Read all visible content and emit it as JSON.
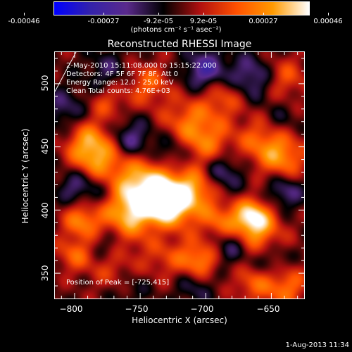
{
  "colorbar": {
    "tick_labels": [
      "-0.00046",
      "-0.00027",
      "-9.2e-05",
      "9.2e-05",
      "0.00027",
      "0.00046"
    ],
    "unit_label": "(photons cm⁻² s⁻¹ asec⁻²)",
    "colors": [
      "#0000ff",
      "#3322aa",
      "#5a2a8c",
      "#000000",
      "#b01010",
      "#ff5000",
      "#ff9a00",
      "#ffffff"
    ]
  },
  "chart_data": {
    "type": "heatmap",
    "title": "Reconstructed RHESSI Image",
    "xlabel": "Heliocentric X (arcsec)",
    "ylabel": "Heliocentric Y (arcsec)",
    "xlim": [
      -815,
      -625
    ],
    "ylim": [
      330,
      525
    ],
    "xticks": [
      -800,
      -750,
      -700,
      -650
    ],
    "yticks": [
      350,
      400,
      450,
      500
    ],
    "xtick_labels": [
      "−800",
      "−750",
      "−700",
      "−650"
    ],
    "ytick_labels": [
      "350",
      "400",
      "450",
      "500"
    ],
    "colorbar_range": [
      -0.00046,
      0.00046
    ],
    "peak": [
      -725,
      415
    ],
    "annotations": [
      "2-May-2010 15:11:08.000 to 15:15:22.000",
      "Detectors: 4F 5F 6F 7F 8F, Att 0",
      "Energy Range: 12.0 - 25.0 keV",
      "Clean    Total counts: 4.76E+03"
    ],
    "peak_label": "Position of Peak = [-725,415]",
    "blobs": [
      {
        "x": -728,
        "y": 405,
        "v": 1.0,
        "s": 14
      },
      {
        "x": -745,
        "y": 420,
        "v": 0.75,
        "s": 20
      },
      {
        "x": -760,
        "y": 398,
        "v": 0.65,
        "s": 18
      },
      {
        "x": -783,
        "y": 440,
        "v": 0.6,
        "s": 14
      },
      {
        "x": -790,
        "y": 455,
        "v": 0.5,
        "s": 12
      },
      {
        "x": -700,
        "y": 452,
        "v": 0.55,
        "s": 14
      },
      {
        "x": -715,
        "y": 470,
        "v": 0.45,
        "s": 14
      },
      {
        "x": -688,
        "y": 490,
        "v": 0.45,
        "s": 12
      },
      {
        "x": -655,
        "y": 455,
        "v": 0.55,
        "s": 14
      },
      {
        "x": -640,
        "y": 440,
        "v": 0.5,
        "s": 12
      },
      {
        "x": -665,
        "y": 395,
        "v": 0.85,
        "s": 10
      },
      {
        "x": -660,
        "y": 380,
        "v": 0.5,
        "s": 14
      },
      {
        "x": -690,
        "y": 392,
        "v": 0.45,
        "s": 10
      },
      {
        "x": -705,
        "y": 360,
        "v": 0.6,
        "s": 10
      },
      {
        "x": -730,
        "y": 365,
        "v": 0.35,
        "s": 14
      },
      {
        "x": -640,
        "y": 340,
        "v": 0.55,
        "s": 12
      },
      {
        "x": -665,
        "y": 342,
        "v": 0.4,
        "s": 10
      },
      {
        "x": -795,
        "y": 392,
        "v": 0.55,
        "s": 10
      },
      {
        "x": -800,
        "y": 365,
        "v": 0.45,
        "s": 10
      },
      {
        "x": -770,
        "y": 350,
        "v": 0.35,
        "s": 12
      },
      {
        "x": -705,
        "y": 418,
        "v": 0.55,
        "s": 12
      },
      {
        "x": -745,
        "y": 500,
        "v": 0.45,
        "s": 12
      },
      {
        "x": -775,
        "y": 485,
        "v": 0.35,
        "s": 10
      },
      {
        "x": -640,
        "y": 505,
        "v": 0.4,
        "s": 12
      },
      {
        "x": -757,
        "y": 455,
        "v": -0.55,
        "s": 12
      },
      {
        "x": -725,
        "y": 445,
        "v": -0.5,
        "s": 12
      },
      {
        "x": -690,
        "y": 430,
        "v": -0.55,
        "s": 12
      },
      {
        "x": -700,
        "y": 510,
        "v": -0.6,
        "s": 12
      },
      {
        "x": -665,
        "y": 505,
        "v": -0.5,
        "s": 12
      },
      {
        "x": -645,
        "y": 470,
        "v": -0.3,
        "s": 10
      },
      {
        "x": -680,
        "y": 370,
        "v": -0.4,
        "s": 10
      },
      {
        "x": -735,
        "y": 385,
        "v": -0.35,
        "s": 12
      },
      {
        "x": -780,
        "y": 415,
        "v": -0.45,
        "s": 12
      },
      {
        "x": -800,
        "y": 420,
        "v": -0.4,
        "s": 10
      },
      {
        "x": -808,
        "y": 480,
        "v": -0.35,
        "s": 12
      },
      {
        "x": -775,
        "y": 510,
        "v": -0.3,
        "s": 12
      },
      {
        "x": -640,
        "y": 415,
        "v": -0.45,
        "s": 10
      },
      {
        "x": -650,
        "y": 360,
        "v": -0.35,
        "s": 10
      },
      {
        "x": -710,
        "y": 340,
        "v": -0.3,
        "s": 10
      },
      {
        "x": -775,
        "y": 375,
        "v": -0.3,
        "s": 10
      },
      {
        "x": -760,
        "y": 340,
        "v": -0.25,
        "s": 12
      }
    ]
  },
  "footer_date": "1-Aug-2013 11:34"
}
